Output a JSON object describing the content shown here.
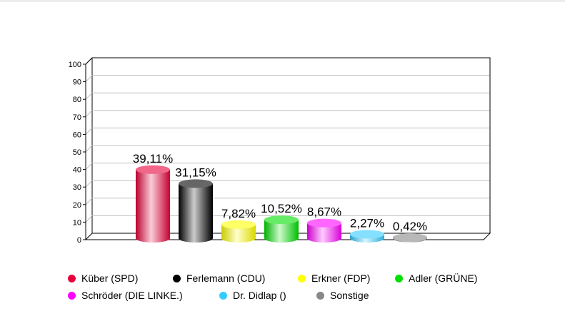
{
  "chart_data": {
    "type": "bar",
    "style": "3d-cylinder",
    "categories": [
      "Küber (SPD)",
      "Ferlemann (CDU)",
      "Erkner (FDP)",
      "Adler (GRÜNE)",
      "Schröder (DIE LINKE.)",
      "Dr. Didlap ()",
      "Sonstige"
    ],
    "values": [
      39.11,
      31.15,
      7.82,
      10.52,
      8.67,
      2.27,
      0.42
    ],
    "data_labels": [
      "39,11%",
      "31,15%",
      "7,82%",
      "10,52%",
      "8,67%",
      "2,27%",
      "0,42%"
    ],
    "colors": [
      "#e8003a",
      "#000000",
      "#ffff00",
      "#00e000",
      "#ff00ff",
      "#33ccff",
      "#888888"
    ],
    "ylim": [
      0,
      100
    ],
    "yticks": [
      "0",
      "10",
      "20",
      "30",
      "40",
      "50",
      "60",
      "70",
      "80",
      "90",
      "100"
    ],
    "grid": true,
    "legend_placement": "bottom",
    "title": "",
    "xlabel": "",
    "ylabel": ""
  }
}
